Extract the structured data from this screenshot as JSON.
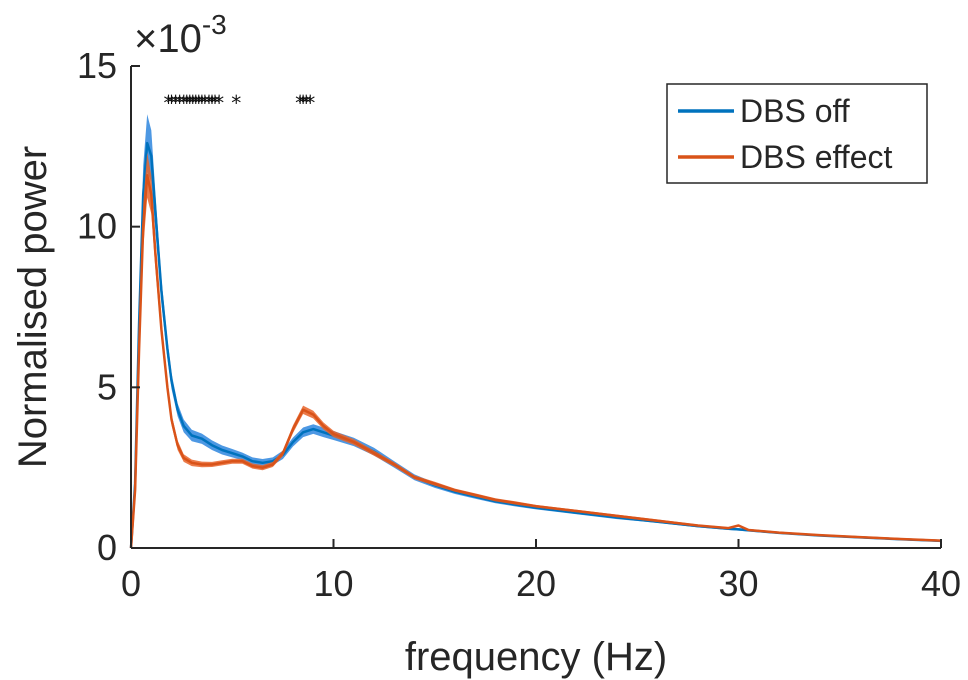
{
  "chart_data": {
    "type": "line",
    "title": "",
    "xlabel": "frequency (Hz)",
    "ylabel": "Normalised power",
    "exponent_label": {
      "prefix": "×10",
      "power": "-3"
    },
    "xlim": [
      0,
      40
    ],
    "ylim": [
      0,
      15
    ],
    "xticks": [
      0,
      10,
      20,
      30,
      40
    ],
    "yticks": [
      0,
      5,
      10,
      15
    ],
    "xtick_labels": [
      "0",
      "10",
      "20",
      "30",
      "40"
    ],
    "ytick_labels": [
      "0",
      "5",
      "10",
      "15"
    ],
    "grid": false,
    "legend_position": "top-right",
    "series": [
      {
        "name": "DBS off",
        "color": "#0072BD",
        "band_color": "#2E86DE",
        "x": [
          0,
          0.2,
          0.4,
          0.6,
          0.8,
          1.0,
          1.2,
          1.5,
          1.8,
          2.0,
          2.3,
          2.6,
          3.0,
          3.5,
          4.0,
          4.5,
          5.0,
          5.5,
          6.0,
          6.5,
          7.0,
          7.5,
          8.0,
          8.5,
          9.0,
          9.5,
          10.0,
          11.0,
          12.0,
          13.0,
          14.0,
          15.0,
          16.0,
          17.0,
          18.0,
          19.0,
          20.0,
          22.0,
          24.0,
          26.0,
          28.0,
          29.5,
          30.0,
          30.5,
          32.0,
          34.0,
          36.0,
          38.0,
          40.0
        ],
        "y": [
          0,
          2.0,
          7.0,
          11.0,
          12.6,
          12.2,
          10.5,
          8.0,
          6.2,
          5.2,
          4.3,
          3.8,
          3.5,
          3.4,
          3.2,
          3.05,
          2.95,
          2.85,
          2.7,
          2.65,
          2.7,
          2.9,
          3.3,
          3.6,
          3.7,
          3.6,
          3.5,
          3.3,
          3.0,
          2.6,
          2.2,
          1.95,
          1.75,
          1.6,
          1.45,
          1.35,
          1.25,
          1.1,
          0.95,
          0.82,
          0.68,
          0.6,
          0.58,
          0.55,
          0.47,
          0.39,
          0.33,
          0.27,
          0.22
        ],
        "band": [
          0,
          0.4,
          0.8,
          0.9,
          0.9,
          0.8,
          0.6,
          0.4,
          0.3,
          0.25,
          0.2,
          0.2,
          0.18,
          0.16,
          0.15,
          0.14,
          0.13,
          0.12,
          0.12,
          0.12,
          0.12,
          0.13,
          0.14,
          0.15,
          0.15,
          0.15,
          0.14,
          0.13,
          0.12,
          0.1,
          0.09,
          0.08,
          0.07,
          0.07,
          0.06,
          0.06,
          0.05,
          0.05,
          0.05,
          0.04,
          0.04,
          0.04,
          0.04,
          0.04,
          0.03,
          0.03,
          0.03,
          0.03,
          0.03
        ]
      },
      {
        "name": "DBS effect",
        "color": "#D95319",
        "band_color": "#E8642A",
        "x": [
          0,
          0.2,
          0.4,
          0.6,
          0.8,
          1.0,
          1.2,
          1.5,
          1.8,
          2.0,
          2.3,
          2.6,
          3.0,
          3.5,
          4.0,
          4.5,
          5.0,
          5.5,
          6.0,
          6.5,
          7.0,
          7.5,
          8.0,
          8.5,
          9.0,
          9.5,
          10.0,
          11.0,
          12.0,
          13.0,
          14.0,
          15.0,
          16.0,
          17.0,
          18.0,
          19.0,
          20.0,
          22.0,
          24.0,
          26.0,
          28.0,
          29.5,
          30.0,
          30.5,
          32.0,
          34.0,
          36.0,
          38.0,
          40.0
        ],
        "y": [
          0,
          1.8,
          6.2,
          10.0,
          11.6,
          11.0,
          9.2,
          6.8,
          5.0,
          4.0,
          3.2,
          2.8,
          2.65,
          2.6,
          2.6,
          2.65,
          2.7,
          2.7,
          2.55,
          2.5,
          2.6,
          2.95,
          3.7,
          4.3,
          4.15,
          3.8,
          3.55,
          3.3,
          2.95,
          2.6,
          2.2,
          2.0,
          1.8,
          1.65,
          1.5,
          1.4,
          1.3,
          1.15,
          1.0,
          0.85,
          0.7,
          0.62,
          0.7,
          0.56,
          0.48,
          0.4,
          0.34,
          0.28,
          0.23
        ],
        "band": [
          0,
          0.3,
          0.6,
          0.7,
          0.7,
          0.6,
          0.5,
          0.3,
          0.2,
          0.18,
          0.15,
          0.12,
          0.1,
          0.09,
          0.08,
          0.08,
          0.08,
          0.08,
          0.08,
          0.08,
          0.08,
          0.09,
          0.12,
          0.13,
          0.12,
          0.11,
          0.1,
          0.09,
          0.08,
          0.07,
          0.06,
          0.06,
          0.05,
          0.05,
          0.05,
          0.05,
          0.04,
          0.04,
          0.04,
          0.04,
          0.03,
          0.03,
          0.03,
          0.03,
          0.03,
          0.03,
          0.03,
          0.03,
          0.03
        ]
      }
    ],
    "significance_markers": {
      "symbol": "*",
      "y": 14,
      "x": [
        1.85,
        2.0,
        2.2,
        2.4,
        2.6,
        2.75,
        2.9,
        3.05,
        3.2,
        3.35,
        3.5,
        3.65,
        3.85,
        4.0,
        4.15,
        4.35,
        5.2,
        8.35,
        8.5,
        8.65,
        8.85
      ]
    }
  }
}
